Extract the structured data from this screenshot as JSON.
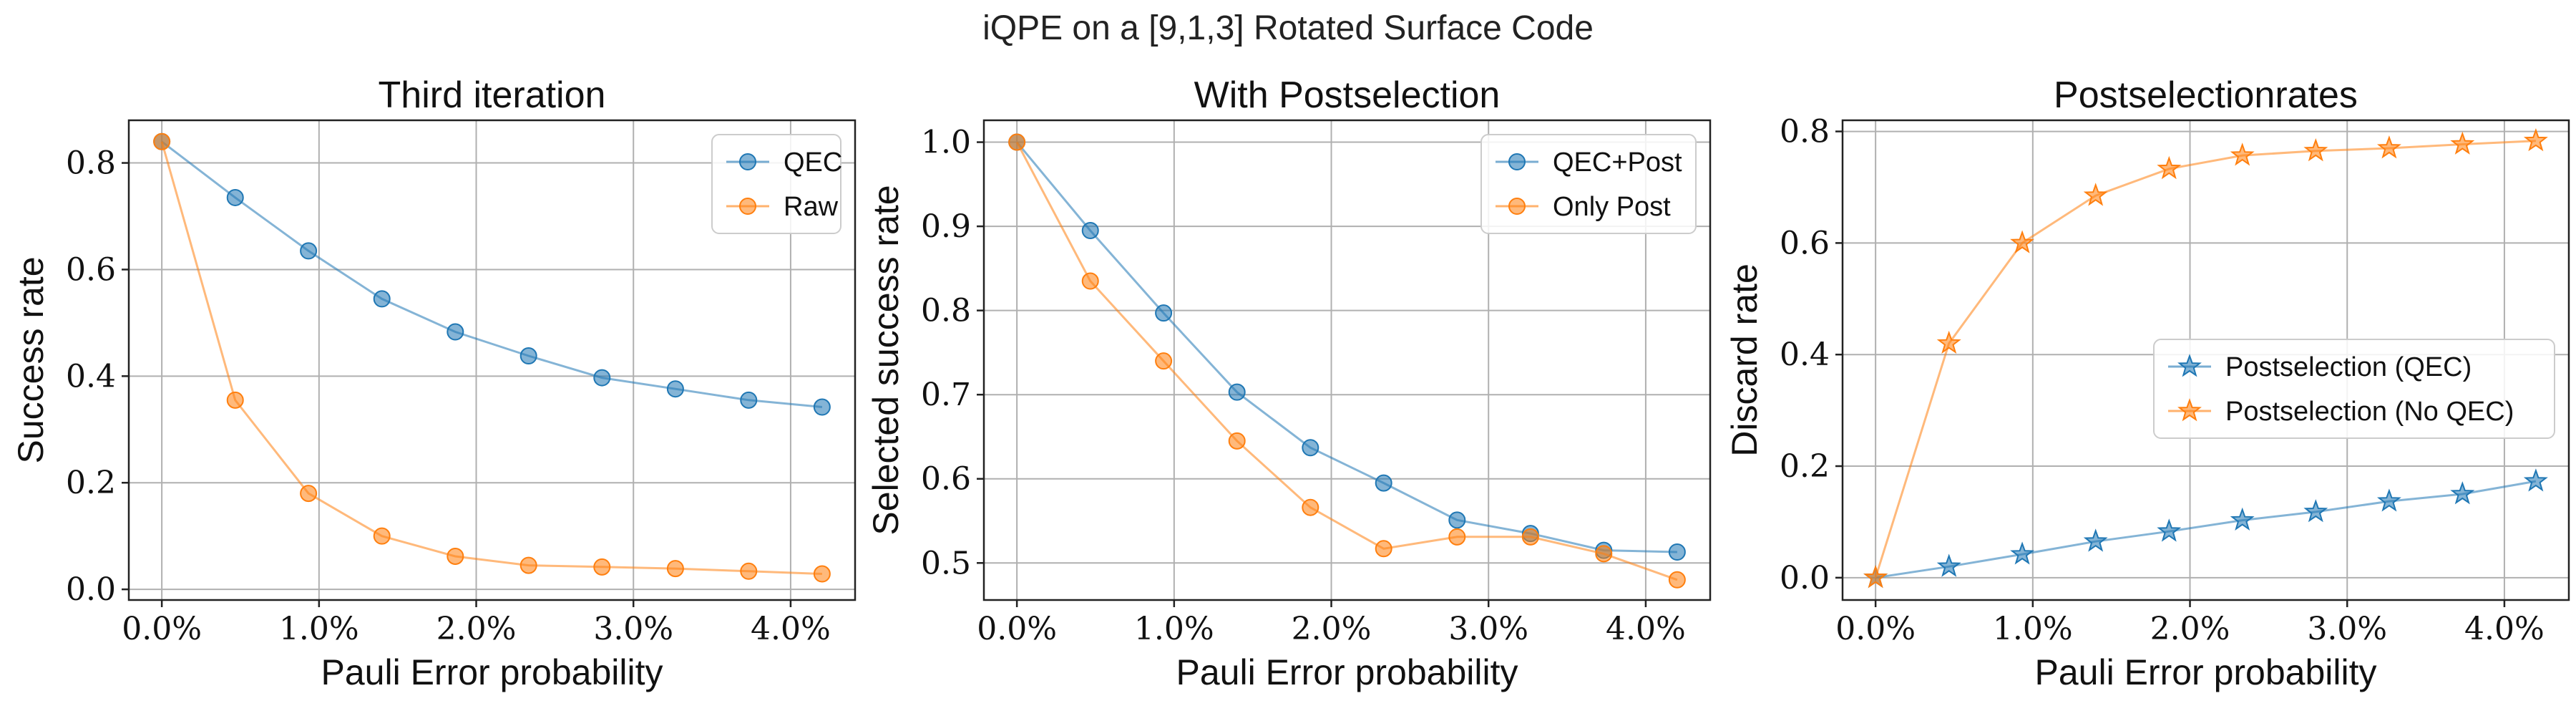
{
  "suptitle": "iQPE on a [9,1,3] Rotated Surface Code",
  "colors": {
    "blue": "#1f77b4",
    "orange": "#ff7f0e"
  },
  "chart_data": [
    {
      "type": "line",
      "title": "Third iteration",
      "xlabel": "Pauli Error probability",
      "ylabel": "Success rate",
      "x": [
        0.0,
        0.467,
        0.933,
        1.4,
        1.867,
        2.333,
        2.8,
        3.267,
        3.733,
        4.2
      ],
      "xlim": [
        -0.21,
        4.41
      ],
      "ylim": [
        -0.02,
        0.88
      ],
      "xticks": [
        0,
        1,
        2,
        3,
        4
      ],
      "xtick_labels": [
        "0.0%",
        "1.0%",
        "2.0%",
        "3.0%",
        "4.0%"
      ],
      "yticks": [
        0.0,
        0.2,
        0.4,
        0.6,
        0.8
      ],
      "ytick_labels": [
        "0.0",
        "0.2",
        "0.4",
        "0.6",
        "0.8"
      ],
      "grid": true,
      "legend_position": "top-right",
      "marker": "circle",
      "series": [
        {
          "name": "QEC",
          "color": "#1f77b4",
          "values": [
            0.84,
            0.735,
            0.635,
            0.545,
            0.483,
            0.438,
            0.397,
            0.376,
            0.355,
            0.342
          ]
        },
        {
          "name": "Raw",
          "color": "#ff7f0e",
          "values": [
            0.84,
            0.355,
            0.18,
            0.1,
            0.062,
            0.045,
            0.042,
            0.039,
            0.034,
            0.029
          ]
        }
      ]
    },
    {
      "type": "line",
      "title": "With Postselection",
      "xlabel": "Pauli Error probability",
      "ylabel": "Selected success rate",
      "x": [
        0.0,
        0.467,
        0.933,
        1.4,
        1.867,
        2.333,
        2.8,
        3.267,
        3.733,
        4.2
      ],
      "xlim": [
        -0.21,
        4.41
      ],
      "ylim": [
        0.456,
        1.026
      ],
      "xticks": [
        0,
        1,
        2,
        3,
        4
      ],
      "xtick_labels": [
        "0.0%",
        "1.0%",
        "2.0%",
        "3.0%",
        "4.0%"
      ],
      "yticks": [
        0.5,
        0.6,
        0.7,
        0.8,
        0.9,
        1.0
      ],
      "ytick_labels": [
        "0.5",
        "0.6",
        "0.7",
        "0.8",
        "0.9",
        "1.0"
      ],
      "grid": true,
      "legend_position": "top-right",
      "marker": "circle",
      "series": [
        {
          "name": "QEC+Post",
          "color": "#1f77b4",
          "values": [
            1.0,
            0.895,
            0.797,
            0.703,
            0.637,
            0.595,
            0.551,
            0.535,
            0.515,
            0.513
          ]
        },
        {
          "name": "Only Post",
          "color": "#ff7f0e",
          "values": [
            1.0,
            0.835,
            0.74,
            0.645,
            0.566,
            0.517,
            0.531,
            0.531,
            0.511,
            0.48
          ]
        }
      ]
    },
    {
      "type": "line",
      "title": "Postselectionrates",
      "xlabel": "Pauli Error probability",
      "ylabel": "Discard rate",
      "x": [
        0.0,
        0.467,
        0.933,
        1.4,
        1.867,
        2.333,
        2.8,
        3.267,
        3.733,
        4.2
      ],
      "xlim": [
        -0.21,
        4.41
      ],
      "ylim": [
        -0.04,
        0.82
      ],
      "xticks": [
        0,
        1,
        2,
        3,
        4
      ],
      "xtick_labels": [
        "0.0%",
        "1.0%",
        "2.0%",
        "3.0%",
        "4.0%"
      ],
      "yticks": [
        0.0,
        0.2,
        0.4,
        0.6,
        0.8
      ],
      "ytick_labels": [
        "0.0",
        "0.2",
        "0.4",
        "0.6",
        "0.8"
      ],
      "grid": true,
      "legend_position": "center-right",
      "marker": "star",
      "series": [
        {
          "name": "Postselection (QEC)",
          "color": "#1f77b4",
          "values": [
            0.0,
            0.02,
            0.042,
            0.065,
            0.083,
            0.103,
            0.118,
            0.137,
            0.15,
            0.173
          ]
        },
        {
          "name": "Postselection (No QEC)",
          "color": "#ff7f0e",
          "values": [
            0.0,
            0.42,
            0.6,
            0.685,
            0.733,
            0.757,
            0.765,
            0.77,
            0.777,
            0.783
          ]
        }
      ]
    }
  ]
}
